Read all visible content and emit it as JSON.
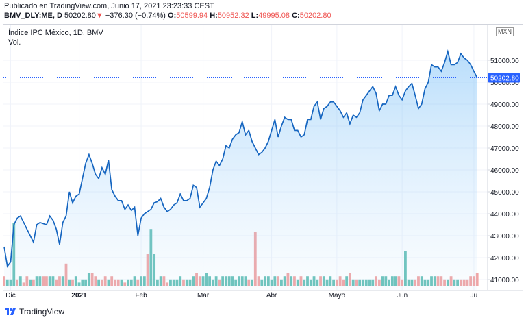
{
  "published": "Publicado en TradingView.com, Junio 17, 2021 23:23:33 CEST",
  "header": {
    "symbol": "BMV_DLY:ME, D",
    "last": "50202.80",
    "change_arrow": "▼",
    "change": "−376.30 (−0.74%)",
    "o_label": "O:",
    "o": "50599.94",
    "h_label": "H:",
    "h": "50952.32",
    "l_label": "L:",
    "l": "49995.08",
    "c_label": "C:",
    "c": "50202.80"
  },
  "chart_title": "Índice IPC México, 1D, BMV",
  "vol_label": "Vol.",
  "currency": "MXN",
  "footer": {
    "brand": "TradingView"
  },
  "colors": {
    "line": "#1565c0",
    "up": "#4db6ac",
    "down": "#ef9a9a",
    "red": "#ef5350",
    "accent": "#2962ff"
  },
  "chart_data": {
    "type": "area",
    "title": "Índice IPC México, 1D, BMV",
    "ylim": [
      40700,
      52400
    ],
    "y_ticks": [
      "41000.00",
      "42000.00",
      "43000.00",
      "44000.00",
      "45000.00",
      "46000.00",
      "47000.00",
      "48000.00",
      "49000.00",
      "50000.00",
      "51000.00"
    ],
    "x_ticks": [
      {
        "label": "Dic",
        "index": 2
      },
      {
        "label": "2021",
        "index": 23
      },
      {
        "label": "Feb",
        "index": 42
      },
      {
        "label": "Mar",
        "index": 61
      },
      {
        "label": "Abr",
        "index": 82
      },
      {
        "label": "Mayo",
        "index": 102
      },
      {
        "label": "Jun",
        "index": 122
      },
      {
        "label": "Ju",
        "index": 144
      }
    ],
    "last_value": "50202.80",
    "values": [
      42500,
      41600,
      41800,
      43500,
      43800,
      43900,
      43600,
      43300,
      43000,
      42700,
      43500,
      43600,
      43550,
      43500,
      43900,
      43700,
      43300,
      42600,
      43600,
      43900,
      45000,
      44500,
      44800,
      44900,
      45600,
      46300,
      46700,
      46300,
      45800,
      45600,
      46100,
      45800,
      46450,
      45100,
      44800,
      44600,
      44600,
      44200,
      44400,
      44150,
      44300,
      43000,
      43800,
      44000,
      44100,
      44200,
      44500,
      44550,
      44700,
      44300,
      44100,
      44200,
      44400,
      44500,
      44900,
      44600,
      44600,
      44700,
      45300,
      45200,
      44300,
      44500,
      44700,
      45200,
      46000,
      46400,
      46200,
      46500,
      47100,
      47000,
      47400,
      47600,
      47700,
      48200,
      47600,
      47800,
      47300,
      47000,
      46700,
      46800,
      47000,
      47300,
      47800,
      48300,
      47500,
      48000,
      48400,
      48300,
      48300,
      47800,
      47800,
      47500,
      47600,
      48300,
      48300,
      48900,
      49100,
      48300,
      48800,
      48900,
      49100,
      49100,
      48900,
      48700,
      48400,
      48600,
      48100,
      48500,
      48400,
      48600,
      49200,
      49400,
      49600,
      49800,
      49500,
      48700,
      49000,
      49000,
      49400,
      49400,
      49800,
      49400,
      49200,
      49600,
      49800,
      49950,
      49400,
      48800,
      49000,
      49700,
      50000,
      50800,
      50700,
      50700,
      50500,
      50900,
      51400,
      50800,
      50800,
      50900,
      51300,
      51100,
      51000,
      50800,
      50500,
      50202.8
    ],
    "volume": {
      "values": [
        3,
        2,
        2,
        20,
        2,
        3,
        1,
        3,
        2,
        2,
        3,
        3,
        3,
        3,
        3,
        3,
        2,
        3,
        3,
        7,
        2,
        2,
        3,
        1,
        2,
        2,
        4,
        4,
        3,
        2,
        2,
        3,
        2,
        3,
        2,
        2,
        2,
        1,
        2,
        2,
        3,
        2,
        3,
        3,
        10,
        18,
        10,
        2,
        3,
        3,
        1,
        2,
        2,
        2,
        3,
        2,
        2,
        2,
        3,
        4,
        3,
        3,
        4,
        3,
        2,
        3,
        2,
        3,
        3,
        3,
        3,
        2,
        3,
        3,
        3,
        2,
        2,
        17,
        3,
        2,
        3,
        3,
        2,
        3,
        3,
        2,
        3,
        4,
        3,
        3,
        2,
        3,
        2,
        3,
        2,
        3,
        2,
        3,
        3,
        2,
        3,
        2,
        2,
        3,
        2,
        3,
        4,
        2,
        2,
        2,
        2,
        2,
        2,
        2,
        3,
        2,
        3,
        3,
        2,
        3,
        3,
        3,
        2,
        11,
        2,
        2,
        2,
        3,
        3,
        2,
        2,
        3,
        3,
        3,
        3,
        2,
        2,
        3,
        2,
        2,
        2,
        2,
        2,
        3,
        3,
        4
      ],
      "direction": [
        "d",
        "u",
        "u",
        "u",
        "d",
        "u",
        "d",
        "d",
        "u",
        "d",
        "u",
        "u",
        "d",
        "d",
        "u",
        "u",
        "d",
        "d",
        "u",
        "d",
        "u",
        "d",
        "u",
        "u",
        "u",
        "u",
        "u",
        "d",
        "d",
        "u",
        "d",
        "d",
        "u",
        "d",
        "d",
        "d",
        "u",
        "d",
        "u",
        "u",
        "u",
        "d",
        "u",
        "u",
        "d",
        "u",
        "u",
        "u",
        "u",
        "d",
        "d",
        "u",
        "u",
        "u",
        "u",
        "d",
        "u",
        "u",
        "u",
        "d",
        "d",
        "u",
        "u",
        "u",
        "u",
        "u",
        "d",
        "u",
        "u",
        "u",
        "u",
        "u",
        "u",
        "u",
        "u",
        "d",
        "u",
        "d",
        "d",
        "u",
        "u",
        "u",
        "u",
        "u",
        "d",
        "u",
        "u",
        "d",
        "u",
        "d",
        "u",
        "d",
        "u",
        "u",
        "u",
        "u",
        "u",
        "d",
        "u",
        "u",
        "u",
        "u",
        "d",
        "d",
        "d",
        "u",
        "d",
        "u",
        "d",
        "u",
        "u",
        "u",
        "u",
        "u",
        "d",
        "d",
        "u",
        "u",
        "u",
        "u",
        "u",
        "d",
        "d",
        "u",
        "u",
        "u",
        "d",
        "d",
        "u",
        "u",
        "u",
        "u",
        "u",
        "d",
        "d",
        "d",
        "u",
        "d",
        "u",
        "u",
        "d",
        "d",
        "d",
        "d",
        "d",
        "d"
      ]
    }
  }
}
